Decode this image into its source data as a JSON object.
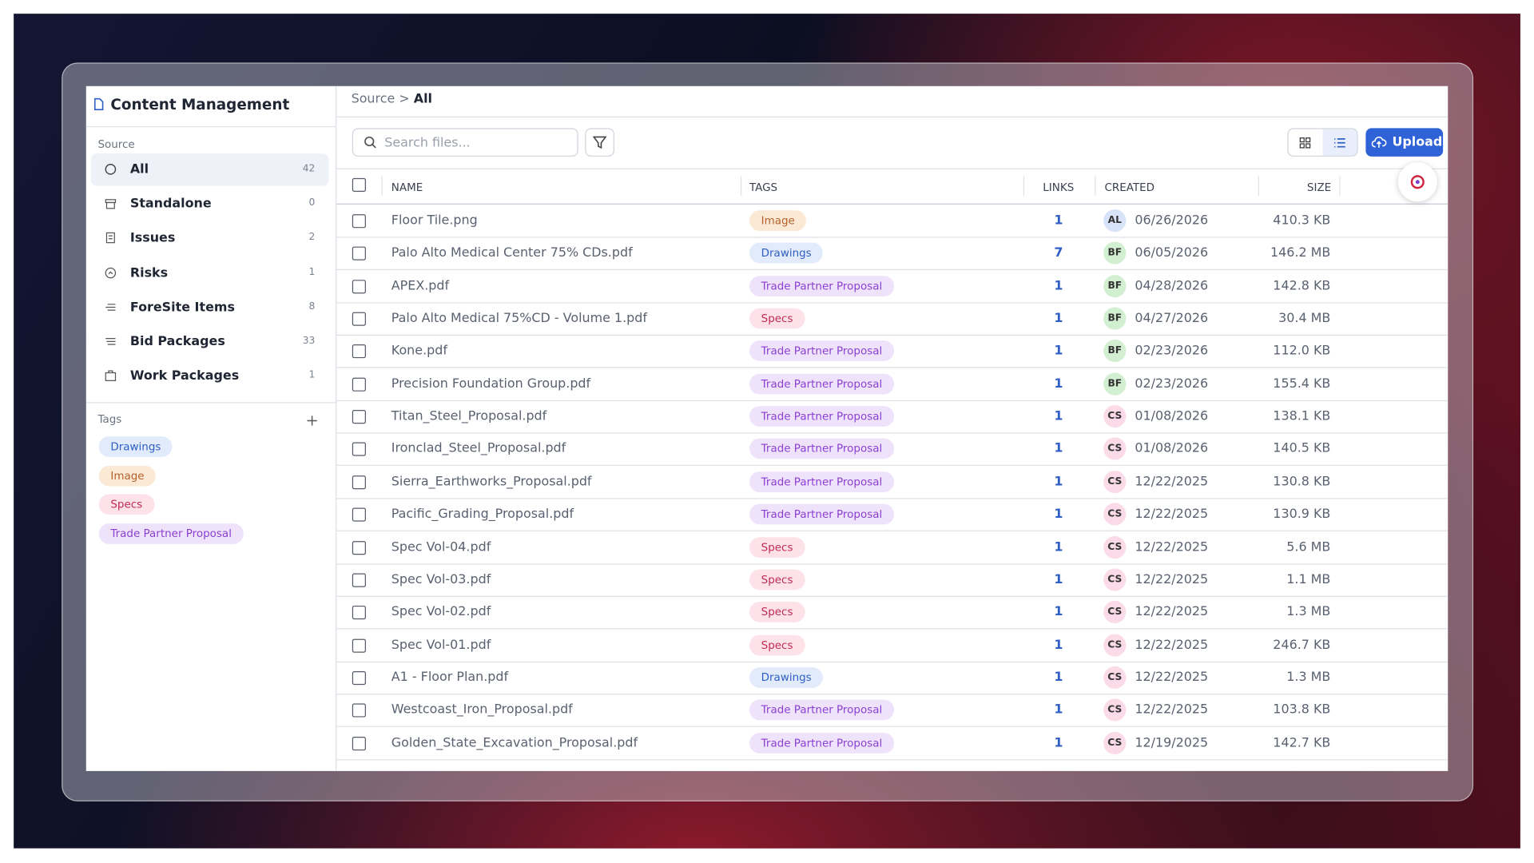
{
  "sidebar": {
    "title": "Content Management",
    "source_label": "Source",
    "sources": [
      {
        "label": "All",
        "count": "42"
      },
      {
        "label": "Standalone",
        "count": "0"
      },
      {
        "label": "Issues",
        "count": "2"
      },
      {
        "label": "Risks",
        "count": "1"
      },
      {
        "label": "ForeSite Items",
        "count": "8"
      },
      {
        "label": "Bid Packages",
        "count": "33"
      },
      {
        "label": "Work Packages",
        "count": "1"
      }
    ],
    "tags_label": "Tags",
    "tags": [
      "Drawings",
      "Image",
      "Specs",
      "Trade Partner Proposal"
    ]
  },
  "main": {
    "breadcrumb": [
      "Source",
      "All"
    ],
    "breadcrumb_separator": ">",
    "search_placeholder": "Search files...",
    "upload": "Upload",
    "columns": [
      "NAME",
      "TAGS",
      "LINKS",
      "CREATED",
      "SIZE"
    ],
    "rows": [
      [
        "Floor Tile.png",
        "Image",
        "1",
        "AL",
        "06/26/2026",
        "410.3 KB"
      ],
      [
        "Palo Alto Medical Center 75% CDs.pdf",
        "Drawings",
        "7",
        "BF",
        "06/05/2026",
        "146.2 MB"
      ],
      [
        "APEX.pdf",
        "Trade Partner Proposal",
        "1",
        "BF",
        "04/28/2026",
        "142.8 KB"
      ],
      [
        "Palo Alto Medical 75%CD - Volume 1.pdf",
        "Specs",
        "1",
        "BF",
        "04/27/2026",
        "30.4 MB"
      ],
      [
        "Kone.pdf",
        "Trade Partner Proposal",
        "1",
        "BF",
        "02/23/2026",
        "112.0 KB"
      ],
      [
        "Precision Foundation Group.pdf",
        "Trade Partner Proposal",
        "1",
        "BF",
        "02/23/2026",
        "155.4 KB"
      ],
      [
        "Titan_Steel_Proposal.pdf",
        "Trade Partner Proposal",
        "1",
        "CS",
        "01/08/2026",
        "138.1 KB"
      ],
      [
        "Ironclad_Steel_Proposal.pdf",
        "Trade Partner Proposal",
        "1",
        "CS",
        "01/08/2026",
        "140.5 KB"
      ],
      [
        "Sierra_Earthworks_Proposal.pdf",
        "Trade Partner Proposal",
        "1",
        "CS",
        "12/22/2025",
        "130.8 KB"
      ],
      [
        "Pacific_Grading_Proposal.pdf",
        "Trade Partner Proposal",
        "1",
        "CS",
        "12/22/2025",
        "130.9 KB"
      ],
      [
        "Spec Vol-04.pdf",
        "Specs",
        "1",
        "CS",
        "12/22/2025",
        "5.6 MB"
      ],
      [
        "Spec Vol-03.pdf",
        "Specs",
        "1",
        "CS",
        "12/22/2025",
        "1.1 MB"
      ],
      [
        "Spec Vol-02.pdf",
        "Specs",
        "1",
        "CS",
        "12/22/2025",
        "1.3 MB"
      ],
      [
        "Spec Vol-01.pdf",
        "Specs",
        "1",
        "CS",
        "12/22/2025",
        "246.7 KB"
      ],
      [
        "A1 - Floor Plan.pdf",
        "Drawings",
        "1",
        "CS",
        "12/22/2025",
        "1.3 MB"
      ],
      [
        "Westcoast_Iron_Proposal.pdf",
        "Trade Partner Proposal",
        "1",
        "CS",
        "12/22/2025",
        "103.8 KB"
      ],
      [
        "Golden_State_Excavation_Proposal.pdf",
        "Trade Partner Proposal",
        "1",
        "CS",
        "12/19/2025",
        "142.7 KB"
      ]
    ]
  }
}
